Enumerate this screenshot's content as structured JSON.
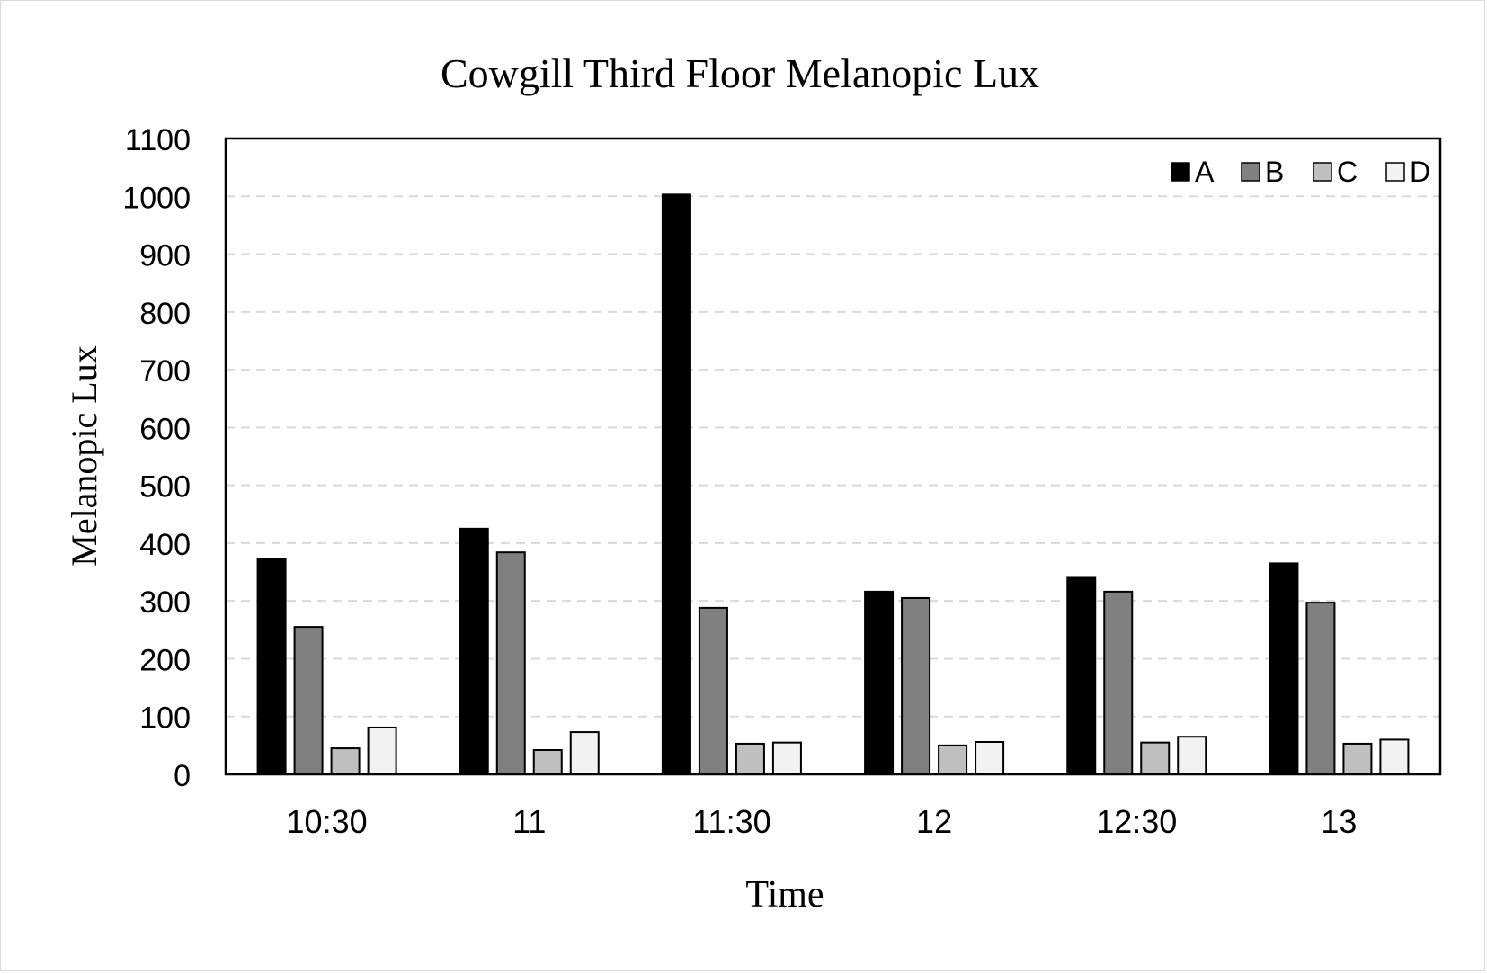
{
  "chart_data": {
    "type": "bar",
    "title": "Cowgill Third Floor Melanopic Lux",
    "xlabel": "Time",
    "ylabel": "Melanopic Lux",
    "categories": [
      "10:30",
      "11",
      "11:30",
      "12",
      "12:30",
      "13"
    ],
    "series": [
      {
        "name": "A",
        "values": [
          372,
          425,
          1003,
          316,
          340,
          365
        ],
        "color": "#000000"
      },
      {
        "name": "B",
        "values": [
          255,
          384,
          288,
          305,
          316,
          297
        ],
        "color": "#808080"
      },
      {
        "name": "C",
        "values": [
          45,
          42,
          53,
          50,
          55,
          53
        ],
        "color": "#bfbfbf"
      },
      {
        "name": "D",
        "values": [
          81,
          73,
          55,
          56,
          65,
          60
        ],
        "color": "#f2f2f2"
      }
    ],
    "ylim": [
      0,
      1100
    ],
    "yticks": [
      0,
      100,
      200,
      300,
      400,
      500,
      600,
      700,
      800,
      900,
      1000,
      1100
    ],
    "grid": "horizontal-dashed",
    "legend_position": "top-right"
  }
}
